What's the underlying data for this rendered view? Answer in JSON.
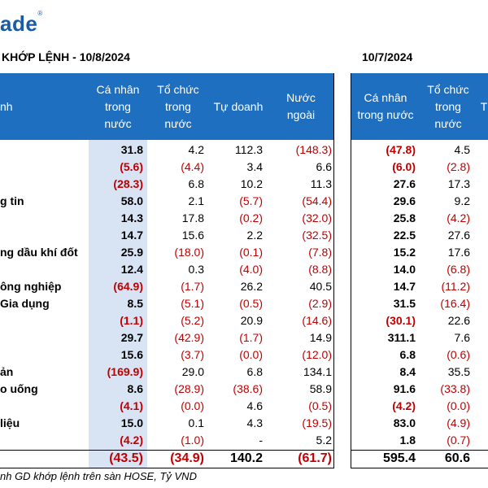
{
  "logo": {
    "text": "ade",
    "mark": "®"
  },
  "titles": {
    "left": "KHỚP LỆNH - 10/8/2024",
    "right": "10/7/2024"
  },
  "headers": {
    "left": {
      "sector": "nh",
      "col1": [
        "Cá nhân",
        "trong",
        "nước"
      ],
      "col2": [
        "Tổ chức",
        "trong",
        "nước"
      ],
      "col3": [
        "Tự doanh"
      ],
      "col4": [
        "Nước",
        "ngoài"
      ]
    },
    "right": {
      "col1": [
        "Cá nhân",
        "trong nước"
      ],
      "col2": [
        "Tổ chức",
        "trong",
        "nước"
      ],
      "col3": [
        "T"
      ]
    }
  },
  "rows": [
    {
      "sector": "",
      "a": "31.8",
      "b": "4.2",
      "c": "112.3",
      "d": "(148.3)",
      "e": "(47.8)",
      "f": "4.5"
    },
    {
      "sector": "",
      "a": "(5.6)",
      "b": "(4.4)",
      "c": "3.4",
      "d": "6.6",
      "e": "(6.0)",
      "f": "(2.8)"
    },
    {
      "sector": "",
      "a": "(28.3)",
      "b": "6.8",
      "c": "10.2",
      "d": "11.3",
      "e": "27.6",
      "f": "17.3"
    },
    {
      "sector": "g tin",
      "a": "58.0",
      "b": "2.1",
      "c": "(5.7)",
      "d": "(54.4)",
      "e": "29.6",
      "f": "9.2"
    },
    {
      "sector": "",
      "a": "14.3",
      "b": "17.8",
      "c": "(0.2)",
      "d": "(32.0)",
      "e": "25.8",
      "f": "(4.2)"
    },
    {
      "sector": "",
      "a": "14.7",
      "b": "15.6",
      "c": "2.2",
      "d": "(32.5)",
      "e": "22.5",
      "f": "27.6"
    },
    {
      "sector": "ng dầu khí đốt",
      "a": "25.9",
      "b": "(18.0)",
      "c": "(0.1)",
      "d": "(7.8)",
      "e": "15.2",
      "f": "17.6"
    },
    {
      "sector": "",
      "a": "12.4",
      "b": "0.3",
      "c": "(4.0)",
      "d": "(8.8)",
      "e": "14.0",
      "f": "(6.8)"
    },
    {
      "sector": "ông nghiệp",
      "a": "(64.9)",
      "b": "(1.7)",
      "c": "26.2",
      "d": "40.5",
      "e": "14.7",
      "f": "(11.2)"
    },
    {
      "sector": "Gia dụng",
      "a": "8.5",
      "b": "(5.1)",
      "c": "(0.5)",
      "d": "(2.9)",
      "e": "31.5",
      "f": "(16.4)"
    },
    {
      "sector": "",
      "a": "(1.1)",
      "b": "(5.2)",
      "c": "20.9",
      "d": "(14.6)",
      "e": "(30.1)",
      "f": "22.6"
    },
    {
      "sector": "",
      "a": "29.7",
      "b": "(42.9)",
      "c": "(1.7)",
      "d": "14.9",
      "e": "311.1",
      "f": "7.6"
    },
    {
      "sector": "",
      "a": "15.6",
      "b": "(3.7)",
      "c": "(0.0)",
      "d": "(12.0)",
      "e": "6.8",
      "f": "(0.6)"
    },
    {
      "sector": "ản",
      "a": "(169.9)",
      "b": "29.0",
      "c": "6.8",
      "d": "134.1",
      "e": "8.4",
      "f": "35.5"
    },
    {
      "sector": "o uống",
      "a": "8.6",
      "b": "(28.9)",
      "c": "(38.6)",
      "d": "58.9",
      "e": "91.6",
      "f": "(33.8)"
    },
    {
      "sector": "",
      "a": "(4.1)",
      "b": "(0.0)",
      "c": "4.6",
      "d": "(0.5)",
      "e": "(4.2)",
      "f": "(0.0)"
    },
    {
      "sector": "liệu",
      "a": "15.0",
      "b": "0.1",
      "c": "4.3",
      "d": "(19.5)",
      "e": "83.0",
      "f": "(4.9)"
    },
    {
      "sector": "",
      "a": "(4.2)",
      "b": "(1.0)",
      "c": "-",
      "d": "5.2",
      "e": "1.8",
      "f": "(0.7)"
    }
  ],
  "totals": {
    "a": "(43.5)",
    "b": "(34.9)",
    "c": "140.2",
    "d": "(61.7)",
    "e": "595.4",
    "f": "60.6"
  },
  "footnote": "nh GD khớp lệnh trên sàn HOSE, Tỷ VND",
  "colors": {
    "header_bg": "#1f6fc0",
    "shade": "#d8e4f3",
    "negative": "#c00000",
    "logo": "#1a5aa6"
  }
}
